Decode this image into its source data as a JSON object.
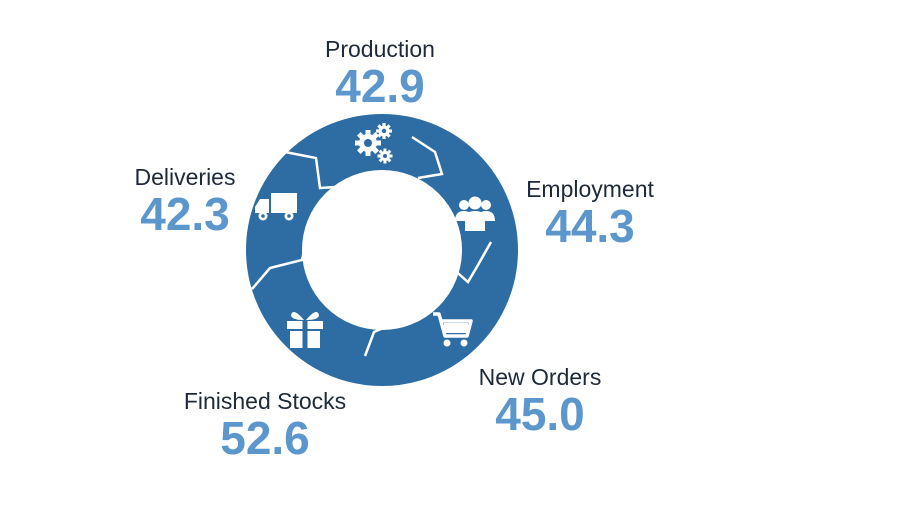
{
  "colors": {
    "ring": "#2e6da4",
    "segment_divider": "#ffffff",
    "value_text": "#5b96cc",
    "label_text": "#1e2a3a"
  },
  "metrics": {
    "production": {
      "label": "Production",
      "value": "42.9",
      "icon": "gears-icon"
    },
    "employment": {
      "label": "Employment",
      "value": "44.3",
      "icon": "people-icon"
    },
    "new_orders": {
      "label": "New Orders",
      "value": "45.0",
      "icon": "shopping-cart-icon"
    },
    "finished_stocks": {
      "label": "Finished Stocks",
      "value": "52.6",
      "icon": "gift-icon"
    },
    "deliveries": {
      "label": "Deliveries",
      "value": "42.3",
      "icon": "delivery-truck-icon"
    }
  }
}
